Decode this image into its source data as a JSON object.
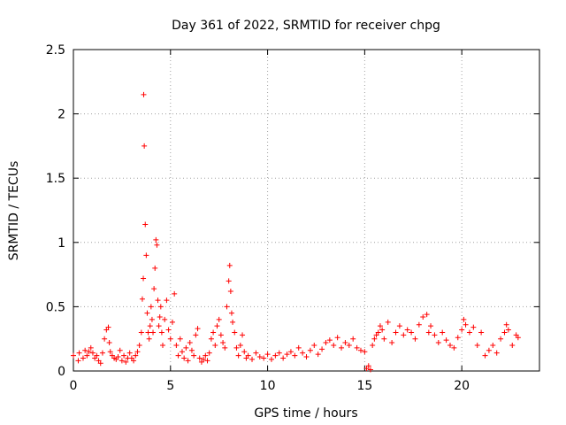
{
  "chart_data": {
    "type": "scatter",
    "title": "Day 361 of 2022, SRMTID for receiver chpg",
    "xlabel": "GPS time / hours",
    "ylabel": "SRMTID / TECUs",
    "xlim": [
      0,
      24
    ],
    "ylim": [
      0,
      2.5
    ],
    "xticks": [
      0,
      5,
      10,
      15,
      20
    ],
    "xtick_labels": [
      "0",
      "5",
      "10",
      "15",
      "20"
    ],
    "yticks": [
      0,
      0.5,
      1,
      1.5,
      2,
      2.5
    ],
    "ytick_labels": [
      "0",
      "0.5",
      "1",
      "1.5",
      "2",
      "2.5"
    ],
    "grid": true,
    "marker": "+",
    "series": [
      {
        "name": "SRMTID",
        "color": "#ff0000",
        "x": [
          0.0,
          0.25,
          0.3,
          0.5,
          0.6,
          0.7,
          0.8,
          0.9,
          1.0,
          1.1,
          1.2,
          1.3,
          1.4,
          1.5,
          1.6,
          1.7,
          1.8,
          1.85,
          1.9,
          2.0,
          2.1,
          2.2,
          2.3,
          2.4,
          2.5,
          2.6,
          2.7,
          2.8,
          2.9,
          3.0,
          3.1,
          3.2,
          3.3,
          3.4,
          3.5,
          3.55,
          3.6,
          3.62,
          3.65,
          3.7,
          3.75,
          3.8,
          3.85,
          3.9,
          3.95,
          4.0,
          4.05,
          4.1,
          4.15,
          4.2,
          4.25,
          4.3,
          4.35,
          4.4,
          4.45,
          4.5,
          4.55,
          4.6,
          4.7,
          4.8,
          4.9,
          5.0,
          5.1,
          5.2,
          5.3,
          5.4,
          5.5,
          5.6,
          5.7,
          5.8,
          5.9,
          6.0,
          6.1,
          6.2,
          6.3,
          6.4,
          6.5,
          6.6,
          6.7,
          6.8,
          6.9,
          7.0,
          7.1,
          7.2,
          7.3,
          7.4,
          7.5,
          7.6,
          7.7,
          7.8,
          7.9,
          8.0,
          8.05,
          8.1,
          8.15,
          8.2,
          8.3,
          8.4,
          8.5,
          8.6,
          8.7,
          8.8,
          8.9,
          9.0,
          9.2,
          9.4,
          9.6,
          9.8,
          10.0,
          10.2,
          10.4,
          10.6,
          10.8,
          11.0,
          11.2,
          11.4,
          11.6,
          11.8,
          12.0,
          12.2,
          12.4,
          12.6,
          12.8,
          13.0,
          13.2,
          13.4,
          13.6,
          13.8,
          14.0,
          14.2,
          14.4,
          14.6,
          14.8,
          15.0,
          15.1,
          15.2,
          15.3,
          15.4,
          15.5,
          15.6,
          15.7,
          15.8,
          15.9,
          16.0,
          16.2,
          16.4,
          16.6,
          16.8,
          17.0,
          17.2,
          17.4,
          17.6,
          17.8,
          18.0,
          18.2,
          18.3,
          18.4,
          18.6,
          18.8,
          19.0,
          19.2,
          19.4,
          19.6,
          19.8,
          20.0,
          20.1,
          20.2,
          20.4,
          20.6,
          20.8,
          21.0,
          21.2,
          21.4,
          21.6,
          21.8,
          22.0,
          22.2,
          22.3,
          22.4,
          22.6,
          22.8,
          22.9
        ],
        "y": [
          0.12,
          0.08,
          0.14,
          0.1,
          0.16,
          0.12,
          0.15,
          0.18,
          0.14,
          0.1,
          0.12,
          0.08,
          0.06,
          0.14,
          0.25,
          0.32,
          0.34,
          0.22,
          0.15,
          0.12,
          0.1,
          0.09,
          0.11,
          0.16,
          0.08,
          0.12,
          0.07,
          0.1,
          0.14,
          0.1,
          0.08,
          0.12,
          0.15,
          0.2,
          0.3,
          0.56,
          0.72,
          2.15,
          1.75,
          1.14,
          0.9,
          0.45,
          0.3,
          0.25,
          0.35,
          0.5,
          0.4,
          0.3,
          0.64,
          0.8,
          1.02,
          0.98,
          0.55,
          0.35,
          0.42,
          0.5,
          0.3,
          0.2,
          0.4,
          0.55,
          0.32,
          0.25,
          0.38,
          0.6,
          0.2,
          0.12,
          0.25,
          0.15,
          0.1,
          0.18,
          0.08,
          0.22,
          0.16,
          0.12,
          0.28,
          0.33,
          0.1,
          0.07,
          0.09,
          0.12,
          0.08,
          0.14,
          0.25,
          0.3,
          0.2,
          0.35,
          0.4,
          0.28,
          0.22,
          0.18,
          0.5,
          0.7,
          0.82,
          0.62,
          0.45,
          0.38,
          0.3,
          0.18,
          0.12,
          0.2,
          0.28,
          0.15,
          0.1,
          0.12,
          0.09,
          0.14,
          0.11,
          0.1,
          0.13,
          0.09,
          0.12,
          0.14,
          0.1,
          0.13,
          0.15,
          0.12,
          0.18,
          0.14,
          0.11,
          0.16,
          0.2,
          0.13,
          0.17,
          0.22,
          0.24,
          0.2,
          0.26,
          0.18,
          0.22,
          0.2,
          0.25,
          0.18,
          0.16,
          0.15,
          0.02,
          0.04,
          0.01,
          0.2,
          0.25,
          0.28,
          0.3,
          0.35,
          0.32,
          0.25,
          0.38,
          0.22,
          0.3,
          0.35,
          0.28,
          0.32,
          0.3,
          0.25,
          0.36,
          0.42,
          0.44,
          0.3,
          0.35,
          0.28,
          0.22,
          0.3,
          0.24,
          0.2,
          0.18,
          0.26,
          0.32,
          0.4,
          0.36,
          0.3,
          0.34,
          0.2,
          0.3,
          0.12,
          0.16,
          0.2,
          0.14,
          0.25,
          0.3,
          0.36,
          0.32,
          0.2,
          0.28,
          0.26
        ]
      }
    ]
  }
}
